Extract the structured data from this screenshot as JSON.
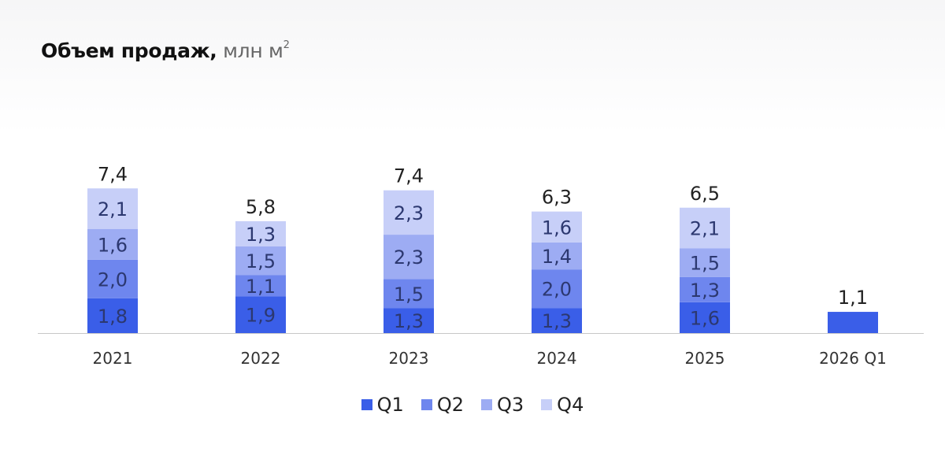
{
  "header": {
    "title_main": "Объем продаж,",
    "title_unit": "млн м",
    "title_sup": "2"
  },
  "colors": {
    "Q1": "#3a5ee8",
    "Q2": "#6e86ee",
    "Q3": "#9dacf3",
    "Q4": "#c7cff8",
    "axis": "#c8c8c8"
  },
  "chart_data": {
    "type": "bar",
    "stacked": true,
    "title": "Объем продаж, млн м²",
    "categories": [
      "2021",
      "2022",
      "2023",
      "2024",
      "2025",
      "2026 Q1"
    ],
    "series": [
      {
        "name": "Q1",
        "values": [
          1.8,
          1.9,
          1.3,
          1.3,
          1.6,
          1.1
        ],
        "labels": [
          "1,8",
          "1,9",
          "1,3",
          "1,3",
          "1,6",
          ""
        ]
      },
      {
        "name": "Q2",
        "values": [
          2.0,
          1.1,
          1.5,
          2.0,
          1.3,
          null
        ],
        "labels": [
          "2,0",
          "1,1",
          "1,5",
          "2,0",
          "1,3",
          ""
        ]
      },
      {
        "name": "Q3",
        "values": [
          1.6,
          1.5,
          2.3,
          1.4,
          1.5,
          null
        ],
        "labels": [
          "1,6",
          "1,5",
          "2,3",
          "1,4",
          "1,5",
          ""
        ]
      },
      {
        "name": "Q4",
        "values": [
          2.1,
          1.3,
          2.3,
          1.6,
          2.1,
          null
        ],
        "labels": [
          "2,1",
          "1,3",
          "2,3",
          "1,6",
          "2,1",
          ""
        ]
      }
    ],
    "totals": [
      7.4,
      5.8,
      7.4,
      6.3,
      6.5,
      1.1
    ],
    "total_labels": [
      "7,4",
      "5,8",
      "7,4",
      "6,3",
      "6,5",
      "1,1"
    ],
    "legend_position": "bottom-center",
    "grid": false,
    "ylim": [
      0,
      7.4
    ]
  }
}
